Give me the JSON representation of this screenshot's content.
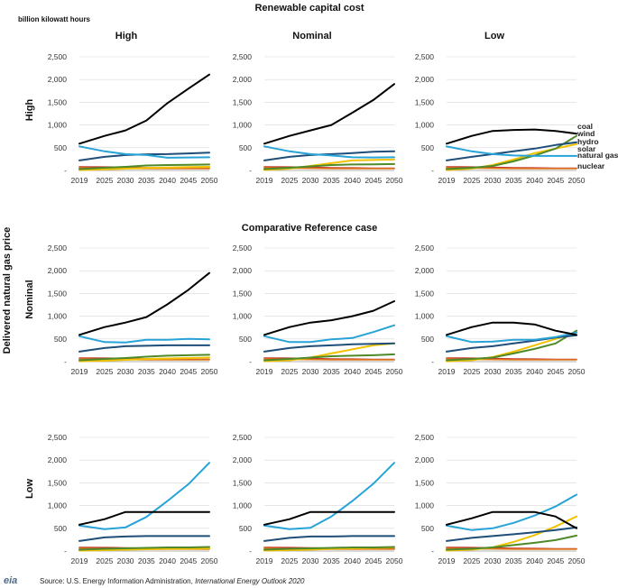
{
  "header": {
    "title": "Renewable capital cost",
    "units": "billion kilowatt hours",
    "mid_title": "Comparative Reference case",
    "y_axis_title": "Delivered natural gas price"
  },
  "columns": [
    "High",
    "Nominal",
    "Low"
  ],
  "rows": [
    "High",
    "Nominal",
    "Low"
  ],
  "source": {
    "logo": "eia",
    "prefix": "Source:  U.S. Energy Information Administration, ",
    "italic": "International Energy Outlook 2020"
  },
  "colors": {
    "coal": "#000000",
    "wind": "#4e8a2a",
    "hydro": "#1f4e79",
    "solar": "#f2c200",
    "natural_gas": "#27a3d8",
    "nuclear": "#c0392b",
    "other": "#e07b1f"
  },
  "chart_data": {
    "type": "line",
    "x": [
      2019,
      2025,
      2030,
      2035,
      2040,
      2045,
      2050
    ],
    "x_ticks": [
      "2019",
      "2025",
      "2030",
      "2035",
      "2040",
      "2045",
      "2050"
    ],
    "ylim": [
      0,
      2500
    ],
    "y_ticks": [
      "-",
      "500",
      "1,000",
      "1,500",
      "2,000",
      "2,500"
    ],
    "legend": [
      {
        "label": "coal",
        "color_key": "coal"
      },
      {
        "label": "wind",
        "color_key": "wind"
      },
      {
        "label": "hydro",
        "color_key": "hydro"
      },
      {
        "label": "solar",
        "color_key": "solar"
      },
      {
        "label": "natural gas",
        "color_key": "natural_gas"
      },
      {
        "label": "nuclear",
        "color_key": "nuclear"
      }
    ],
    "legend_placement": "right of top-right panel",
    "panels": [
      {
        "row": "High",
        "col": "High",
        "series": [
          {
            "key": "coal",
            "values": [
              590,
              760,
              880,
              1100,
              1480,
              1800,
              2110
            ]
          },
          {
            "key": "natural_gas",
            "values": [
              530,
              420,
              360,
              340,
              280,
              285,
              290
            ]
          },
          {
            "key": "hydro",
            "values": [
              220,
              300,
              340,
              355,
              360,
              375,
              390
            ]
          },
          {
            "key": "wind",
            "values": [
              30,
              60,
              80,
              110,
              120,
              125,
              130
            ]
          },
          {
            "key": "solar",
            "values": [
              10,
              25,
              40,
              55,
              65,
              75,
              80
            ]
          },
          {
            "key": "nuclear",
            "values": [
              80,
              75,
              70,
              60,
              55,
              50,
              50
            ]
          },
          {
            "key": "other",
            "values": [
              60,
              50,
              45,
              40,
              40,
              40,
              40
            ]
          }
        ]
      },
      {
        "row": "High",
        "col": "Nominal",
        "series": [
          {
            "key": "coal",
            "values": [
              590,
              760,
              880,
              1000,
              1270,
              1550,
              1900
            ]
          },
          {
            "key": "natural_gas",
            "values": [
              530,
              420,
              360,
              330,
              290,
              285,
              290
            ]
          },
          {
            "key": "hydro",
            "values": [
              220,
              300,
              340,
              360,
              380,
              410,
              420
            ]
          },
          {
            "key": "wind",
            "values": [
              30,
              60,
              90,
              120,
              130,
              135,
              140
            ]
          },
          {
            "key": "solar",
            "values": [
              10,
              40,
              100,
              160,
              220,
              230,
              240
            ]
          },
          {
            "key": "nuclear",
            "values": [
              80,
              75,
              70,
              60,
              55,
              50,
              50
            ]
          },
          {
            "key": "other",
            "values": [
              60,
              50,
              45,
              40,
              40,
              40,
              40
            ]
          }
        ]
      },
      {
        "row": "High",
        "col": "Low",
        "series": [
          {
            "key": "coal",
            "values": [
              590,
              760,
              870,
              890,
              900,
              870,
              810
            ]
          },
          {
            "key": "natural_gas",
            "values": [
              530,
              420,
              360,
              330,
              320,
              320,
              320
            ]
          },
          {
            "key": "hydro",
            "values": [
              220,
              300,
              360,
              420,
              480,
              560,
              620
            ]
          },
          {
            "key": "wind",
            "values": [
              30,
              60,
              100,
              200,
              330,
              480,
              760
            ]
          },
          {
            "key": "solar",
            "values": [
              10,
              40,
              120,
              240,
              380,
              480,
              580
            ]
          },
          {
            "key": "nuclear",
            "values": [
              80,
              75,
              70,
              60,
              55,
              50,
              50
            ]
          },
          {
            "key": "other",
            "values": [
              60,
              50,
              45,
              40,
              40,
              40,
              40
            ]
          }
        ]
      },
      {
        "row": "Nominal",
        "col": "High",
        "series": [
          {
            "key": "coal",
            "values": [
              590,
              760,
              860,
              980,
              1260,
              1580,
              1950
            ]
          },
          {
            "key": "natural_gas",
            "values": [
              560,
              430,
              420,
              480,
              480,
              500,
              490
            ]
          },
          {
            "key": "hydro",
            "values": [
              220,
              300,
              340,
              350,
              360,
              360,
              360
            ]
          },
          {
            "key": "wind",
            "values": [
              30,
              60,
              80,
              110,
              130,
              140,
              150
            ]
          },
          {
            "key": "solar",
            "values": [
              10,
              20,
              40,
              60,
              70,
              80,
              90
            ]
          },
          {
            "key": "nuclear",
            "values": [
              80,
              75,
              70,
              60,
              55,
              50,
              50
            ]
          },
          {
            "key": "other",
            "values": [
              60,
              50,
              45,
              40,
              40,
              40,
              40
            ]
          }
        ]
      },
      {
        "row": "Nominal",
        "col": "Nominal",
        "series": [
          {
            "key": "coal",
            "values": [
              590,
              760,
              860,
              910,
              1000,
              1120,
              1330
            ]
          },
          {
            "key": "natural_gas",
            "values": [
              560,
              430,
              430,
              490,
              520,
              650,
              800
            ]
          },
          {
            "key": "hydro",
            "values": [
              220,
              300,
              340,
              360,
              380,
              390,
              400
            ]
          },
          {
            "key": "wind",
            "values": [
              30,
              60,
              90,
              120,
              130,
              140,
              160
            ]
          },
          {
            "key": "solar",
            "values": [
              10,
              30,
              90,
              180,
              270,
              360,
              400
            ]
          },
          {
            "key": "nuclear",
            "values": [
              80,
              75,
              70,
              60,
              55,
              50,
              50
            ]
          },
          {
            "key": "other",
            "values": [
              60,
              50,
              45,
              40,
              40,
              40,
              40
            ]
          }
        ]
      },
      {
        "row": "Nominal",
        "col": "Low",
        "series": [
          {
            "key": "coal",
            "values": [
              590,
              760,
              860,
              860,
              820,
              680,
              590
            ]
          },
          {
            "key": "natural_gas",
            "values": [
              560,
              430,
              440,
              480,
              480,
              540,
              640
            ]
          },
          {
            "key": "hydro",
            "values": [
              220,
              300,
              340,
              400,
              460,
              530,
              580
            ]
          },
          {
            "key": "wind",
            "values": [
              30,
              60,
              90,
              180,
              280,
              400,
              680
            ]
          },
          {
            "key": "solar",
            "values": [
              10,
              30,
              100,
              220,
              360,
              500,
              640
            ]
          },
          {
            "key": "nuclear",
            "values": [
              80,
              75,
              70,
              60,
              55,
              50,
              50
            ]
          },
          {
            "key": "other",
            "values": [
              60,
              50,
              45,
              40,
              40,
              40,
              40
            ]
          }
        ]
      },
      {
        "row": "Low",
        "col": "High",
        "series": [
          {
            "key": "coal",
            "values": [
              580,
              700,
              860,
              860,
              860,
              860,
              860
            ]
          },
          {
            "key": "natural_gas",
            "values": [
              560,
              480,
              520,
              750,
              1100,
              1470,
              1940
            ]
          },
          {
            "key": "hydro",
            "values": [
              220,
              300,
              320,
              330,
              330,
              330,
              330
            ]
          },
          {
            "key": "wind",
            "values": [
              30,
              50,
              60,
              70,
              80,
              80,
              90
            ]
          },
          {
            "key": "solar",
            "values": [
              10,
              20,
              30,
              40,
              50,
              50,
              60
            ]
          },
          {
            "key": "nuclear",
            "values": [
              80,
              75,
              70,
              60,
              55,
              50,
              50
            ]
          },
          {
            "key": "other",
            "values": [
              60,
              50,
              45,
              40,
              40,
              40,
              40
            ]
          }
        ]
      },
      {
        "row": "Low",
        "col": "Nominal",
        "series": [
          {
            "key": "coal",
            "values": [
              580,
              700,
              860,
              860,
              860,
              860,
              860
            ]
          },
          {
            "key": "natural_gas",
            "values": [
              560,
              480,
              510,
              760,
              1100,
              1480,
              1940
            ]
          },
          {
            "key": "hydro",
            "values": [
              220,
              290,
              320,
              320,
              330,
              330,
              330
            ]
          },
          {
            "key": "wind",
            "values": [
              30,
              50,
              60,
              70,
              80,
              80,
              90
            ]
          },
          {
            "key": "solar",
            "values": [
              10,
              20,
              30,
              50,
              60,
              70,
              80
            ]
          },
          {
            "key": "nuclear",
            "values": [
              80,
              75,
              70,
              60,
              55,
              50,
              50
            ]
          },
          {
            "key": "other",
            "values": [
              60,
              50,
              45,
              40,
              40,
              40,
              40
            ]
          }
        ]
      },
      {
        "row": "Low",
        "col": "Low",
        "series": [
          {
            "key": "coal",
            "values": [
              580,
              720,
              860,
              860,
              860,
              760,
              500
            ]
          },
          {
            "key": "natural_gas",
            "values": [
              560,
              460,
              500,
              620,
              780,
              980,
              1240
            ]
          },
          {
            "key": "hydro",
            "values": [
              220,
              290,
              330,
              370,
              410,
              460,
              520
            ]
          },
          {
            "key": "wind",
            "values": [
              30,
              50,
              80,
              130,
              180,
              240,
              340
            ]
          },
          {
            "key": "solar",
            "values": [
              10,
              30,
              80,
              200,
              350,
              540,
              760
            ]
          },
          {
            "key": "nuclear",
            "values": [
              80,
              75,
              70,
              60,
              55,
              50,
              50
            ]
          },
          {
            "key": "other",
            "values": [
              60,
              50,
              45,
              40,
              40,
              40,
              40
            ]
          }
        ]
      }
    ]
  }
}
